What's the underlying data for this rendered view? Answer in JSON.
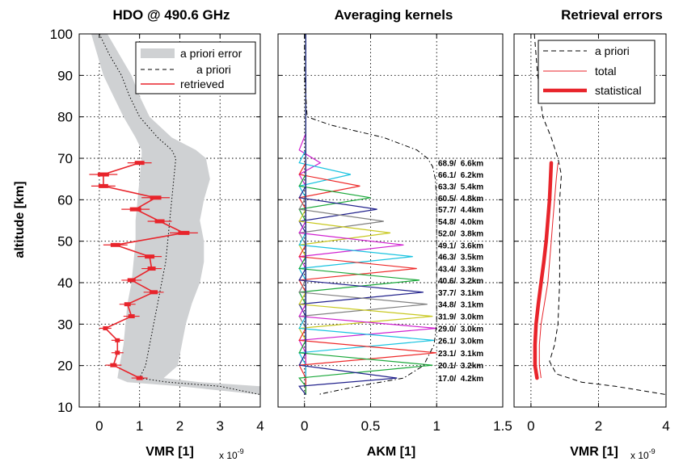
{
  "figure": {
    "ylabel": "altitude [km]",
    "ylim": [
      10,
      100
    ],
    "yticks": [
      "10",
      "20",
      "30",
      "40",
      "50",
      "60",
      "70",
      "80",
      "90",
      "100"
    ]
  },
  "chart_data": [
    {
      "type": "line",
      "title": "HDO @ 490.6 GHz",
      "xlabel": "VMR [1]",
      "xscale_note": "x 10",
      "xscale_exp": "-9",
      "xlim": [
        -0.5,
        4
      ],
      "xticks": [
        "0",
        "1",
        "2",
        "3",
        "4"
      ],
      "legend": {
        "placement": "top-right",
        "entries": [
          "a priori error",
          "a priori",
          "retrieved"
        ]
      },
      "apriori_error_band": {
        "alt": [
          100,
          95,
          90,
          85,
          80,
          75,
          72,
          70,
          65,
          60,
          55,
          50,
          45,
          40,
          35,
          30,
          25,
          20,
          17,
          16,
          15,
          13
        ],
        "lower": [
          -0.2,
          -0.05,
          0.1,
          0.35,
          0.6,
          0.9,
          1.05,
          1.05,
          1.0,
          0.95,
          0.9,
          0.9,
          0.85,
          0.8,
          0.7,
          0.65,
          0.6,
          0.5,
          0.45,
          0.7,
          2.0,
          4.0
        ],
        "upper": [
          0.2,
          0.5,
          0.8,
          1.0,
          1.25,
          1.8,
          2.4,
          2.65,
          2.75,
          2.6,
          2.5,
          2.6,
          2.6,
          2.5,
          2.3,
          2.15,
          2.05,
          1.95,
          1.6,
          2.5,
          4.0,
          4.0
        ]
      },
      "apriori": {
        "alt": [
          100,
          95,
          90,
          85,
          80,
          75,
          72,
          70,
          65,
          60,
          55,
          50,
          45,
          40,
          35,
          30,
          25,
          20,
          17,
          16,
          15,
          13
        ],
        "vmr": [
          0.0,
          0.25,
          0.55,
          0.75,
          1.0,
          1.45,
          1.8,
          1.9,
          1.85,
          1.8,
          1.75,
          1.7,
          1.65,
          1.55,
          1.45,
          1.35,
          1.25,
          1.15,
          1.0,
          1.7,
          3.0,
          4.0
        ]
      },
      "retrieved": {
        "alt": [
          68.9,
          66.1,
          63.3,
          60.5,
          57.7,
          54.8,
          52.0,
          49.1,
          46.3,
          43.4,
          40.6,
          37.7,
          34.8,
          31.9,
          29.0,
          26.1,
          23.1,
          20.1,
          17.0
        ],
        "vmr": [
          1.0,
          0.1,
          0.1,
          1.4,
          0.9,
          1.5,
          2.1,
          0.4,
          1.25,
          1.3,
          0.8,
          1.35,
          0.7,
          0.8,
          0.15,
          0.45,
          0.45,
          0.35,
          1.0
        ],
        "err": [
          0.3,
          0.35,
          0.3,
          0.35,
          0.35,
          0.3,
          0.35,
          0.3,
          0.3,
          0.25,
          0.25,
          0.25,
          0.2,
          0.2,
          0.15,
          0.15,
          0.15,
          0.2,
          0.2
        ]
      }
    },
    {
      "type": "line",
      "title": "Averaging kernels",
      "xlabel": "AKM [1]",
      "xlim": [
        -0.2,
        1.5
      ],
      "xticks": [
        "0",
        "0.5",
        "1",
        "1.5"
      ],
      "line_colors": [
        "#d01fd0",
        "#19c3e0",
        "#ee2a2a",
        "#1aa83a",
        "#22228c",
        "#808080",
        "#c8c820"
      ],
      "kernel_labels": [
        "68.9/  6.6km",
        "66.1/  6.2km",
        "63.3/  5.4km",
        "60.5/  4.8km",
        "57.7/  4.4km",
        "54.8/  4.0km",
        "52.0/  3.8km",
        "49.1/  3.6km",
        "46.3/  3.5km",
        "43.4/  3.3km",
        "40.6/  3.2km",
        "37.7/  3.1km",
        "34.8/  3.1km",
        "31.9/  3.0km",
        "29.0/  3.0km",
        "26.1/  3.0km",
        "23.1/  3.1km",
        "20.1/  3.2km",
        "17.0/  4.2km"
      ],
      "kernels": {
        "peak_alt": [
          68.9,
          66.1,
          63.3,
          60.5,
          57.7,
          54.8,
          52.0,
          49.1,
          46.3,
          43.4,
          40.6,
          37.7,
          34.8,
          31.9,
          29.0,
          26.1,
          23.1,
          20.1,
          17.0
        ],
        "peak_value": [
          0.12,
          0.35,
          0.42,
          0.5,
          0.55,
          0.6,
          0.65,
          0.75,
          0.82,
          0.85,
          0.87,
          0.9,
          0.93,
          0.97,
          1.0,
          0.98,
          1.0,
          0.97,
          0.7
        ]
      },
      "measurement_response": {
        "alt": [
          100,
          90,
          80,
          78,
          75,
          72,
          70,
          68,
          65,
          60,
          55,
          50,
          45,
          40,
          35,
          30,
          25,
          20,
          17,
          15,
          13
        ],
        "value": [
          0.0,
          0.0,
          0.02,
          0.2,
          0.6,
          0.85,
          0.93,
          0.97,
          0.99,
          1.0,
          1.0,
          1.0,
          1.0,
          1.0,
          1.0,
          1.0,
          0.98,
          0.9,
          0.75,
          0.4,
          0.1
        ]
      }
    },
    {
      "type": "line",
      "title": "Retrieval errors",
      "xlabel": "VMR [1]",
      "xscale_note": "x 10",
      "xscale_exp": "-9",
      "xlim": [
        -0.5,
        4
      ],
      "xticks": [
        "0",
        "2",
        "4"
      ],
      "legend": {
        "placement": "top-right",
        "entries": [
          "a priori",
          "total",
          "statistical"
        ]
      },
      "series": [
        {
          "name": "a priori",
          "alt": [
            100,
            90,
            80,
            75,
            70,
            66,
            60,
            50,
            40,
            30,
            25,
            21,
            18,
            16,
            15,
            13
          ],
          "value": [
            0.1,
            0.2,
            0.35,
            0.6,
            0.8,
            0.9,
            0.85,
            0.85,
            0.85,
            0.8,
            0.7,
            0.55,
            0.75,
            1.5,
            2.5,
            4.0
          ]
        },
        {
          "name": "total",
          "alt": [
            68.9,
            65,
            60,
            55,
            50,
            45,
            40,
            35,
            30,
            25,
            20,
            17.0
          ],
          "value": [
            0.8,
            0.75,
            0.7,
            0.65,
            0.6,
            0.55,
            0.5,
            0.4,
            0.3,
            0.25,
            0.25,
            0.3
          ]
        },
        {
          "name": "statistical",
          "alt": [
            68.9,
            65,
            60,
            55,
            50,
            45,
            40,
            35,
            30,
            25,
            20,
            17.0
          ],
          "value": [
            0.6,
            0.58,
            0.55,
            0.5,
            0.45,
            0.38,
            0.3,
            0.22,
            0.15,
            0.12,
            0.12,
            0.18
          ]
        }
      ]
    }
  ]
}
